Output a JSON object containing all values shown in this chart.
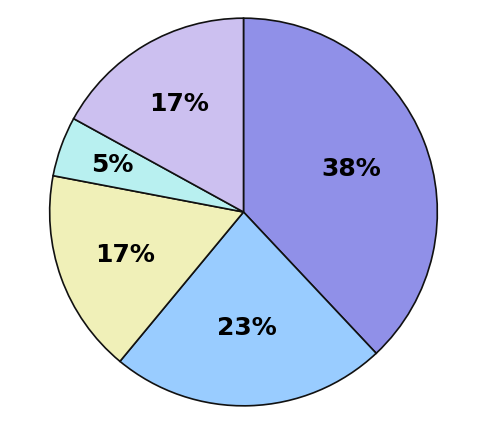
{
  "slices": [
    38,
    23,
    17,
    5,
    17
  ],
  "colors": [
    "#9090e8",
    "#99ccff",
    "#f0f0b8",
    "#b8f0f0",
    "#ccc0f0"
  ],
  "labels": [
    "38%",
    "23%",
    "17%",
    "5%",
    "17%"
  ],
  "startangle": 90,
  "background_color": "#ffffff",
  "label_fontsize": 18,
  "label_fontweight": "bold",
  "label_radii": [
    0.6,
    0.6,
    0.65,
    0.72,
    0.65
  ]
}
